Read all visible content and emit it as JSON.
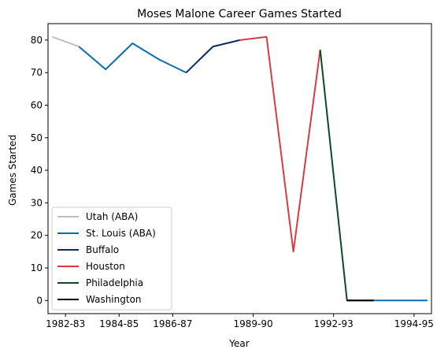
{
  "chart_data": {
    "type": "line",
    "title": "Moses Malone Career Games Started",
    "xlabel": "Year",
    "ylabel": "Games Started",
    "x_tick_labels": [
      "1982-83",
      "1984-85",
      "1986-87",
      "1989-90",
      "1992-93",
      "1994-95"
    ],
    "x_tick_positions": [
      1,
      3,
      5,
      8,
      11,
      14
    ],
    "xlim": [
      0.35,
      14.65
    ],
    "ylim": [
      -4.05,
      85.05
    ],
    "y_ticks": [
      0,
      10,
      20,
      30,
      40,
      50,
      60,
      70,
      80
    ],
    "grid": false,
    "legend_position": "lower-left",
    "series": [
      {
        "name": "Utah (ABA)",
        "color": "#bebebe",
        "x": [
          0,
          1
        ],
        "y": [
          81,
          78
        ]
      },
      {
        "name": "St. Louis (ABA)",
        "color": "#0a6db1",
        "x": [
          1,
          2,
          3,
          4,
          5
        ],
        "y": [
          78,
          71,
          79,
          74,
          70
        ]
      },
      {
        "name": "Buffalo",
        "color": "#0c2b5e",
        "x": [
          5,
          6,
          7
        ],
        "y": [
          70,
          78,
          80
        ]
      },
      {
        "name": "Houston",
        "color": "#d93a43",
        "x": [
          7,
          8,
          9,
          10
        ],
        "y": [
          80,
          81,
          15,
          77
        ]
      },
      {
        "name": "Philadelphia",
        "color": "#0b4a24",
        "x": [
          10,
          11,
          12
        ],
        "y": [
          77,
          0,
          0
        ]
      },
      {
        "name": "Washington",
        "color": "#000000",
        "x": [
          11,
          12
        ],
        "y": [
          0,
          0
        ]
      },
      {
        "name": "",
        "color": "#0a6db1",
        "x": [
          12,
          13,
          14
        ],
        "y": [
          0,
          0,
          0
        ]
      }
    ],
    "x_data_origin_offset": -0.5
  }
}
